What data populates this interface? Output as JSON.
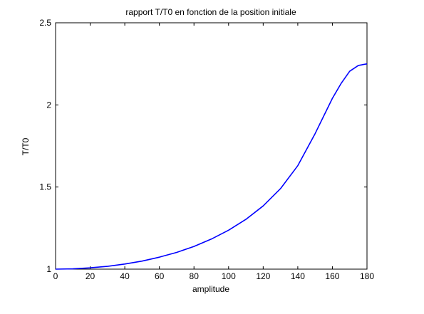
{
  "chart_data": {
    "type": "line",
    "title": "rapport T/T0 en fonction de la position initiale",
    "xlabel": "amplitude",
    "ylabel": "T/T0",
    "xlim": [
      0,
      180
    ],
    "ylim": [
      1,
      2.5
    ],
    "xticks": [
      0,
      20,
      40,
      60,
      80,
      100,
      120,
      140,
      160,
      180
    ],
    "yticks": [
      1,
      1.5,
      2,
      2.5
    ],
    "xtick_labels": [
      "0",
      "20",
      "40",
      "60",
      "80",
      "100",
      "120",
      "140",
      "160",
      "180"
    ],
    "ytick_labels": [
      "1",
      "1.5",
      "2",
      "2.5"
    ],
    "grid": false,
    "series": [
      {
        "color": "#0000ff",
        "x": [
          0,
          10,
          20,
          30,
          40,
          50,
          60,
          70,
          80,
          90,
          100,
          110,
          120,
          130,
          140,
          150,
          160,
          165,
          170,
          175,
          180
        ],
        "y": [
          1.0,
          1.002,
          1.008,
          1.017,
          1.031,
          1.049,
          1.073,
          1.102,
          1.138,
          1.183,
          1.237,
          1.303,
          1.385,
          1.49,
          1.63,
          1.825,
          2.04,
          2.13,
          2.205,
          2.24,
          2.25
        ]
      }
    ]
  }
}
